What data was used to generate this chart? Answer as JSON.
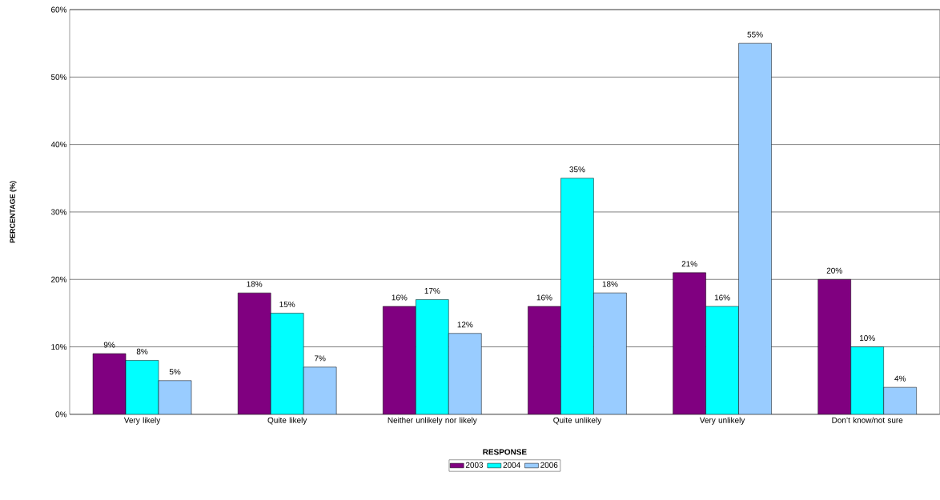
{
  "chart_data": {
    "type": "bar",
    "xlabel": "RESPONSE",
    "ylabel": "PERCENTAGE (%)",
    "categories": [
      "Very likely",
      "Quite likely",
      "Neither unlikely nor likely",
      "Quite unlikely",
      "Very unlikely",
      "Don’t know/not sure"
    ],
    "series": [
      {
        "name": "2003",
        "color": "#800080",
        "values": [
          9,
          18,
          16,
          16,
          21,
          20
        ],
        "value_labels": [
          "9%",
          "18%",
          "16%",
          "16%",
          "21%",
          "20%"
        ]
      },
      {
        "name": "2004",
        "color": "#00ffff",
        "values": [
          8,
          15,
          17,
          35,
          16,
          10
        ],
        "value_labels": [
          "8%",
          "15%",
          "17%",
          "35%",
          "16%",
          "10%"
        ]
      },
      {
        "name": "2006",
        "color": "#99ccff",
        "values": [
          5,
          7,
          12,
          18,
          55,
          4
        ],
        "value_labels": [
          "5%",
          "7%",
          "12%",
          "18%",
          "55%",
          "4%"
        ]
      }
    ],
    "ylim": [
      0,
      60
    ],
    "yticks": [
      {
        "value": 0,
        "label": "0%"
      },
      {
        "value": 10,
        "label": "10%"
      },
      {
        "value": 20,
        "label": "20%"
      },
      {
        "value": 30,
        "label": "30%"
      },
      {
        "value": 40,
        "label": "40%"
      },
      {
        "value": 50,
        "label": "50%"
      },
      {
        "value": 60,
        "label": "60%"
      }
    ],
    "grid": "y",
    "legend": "bottom"
  }
}
